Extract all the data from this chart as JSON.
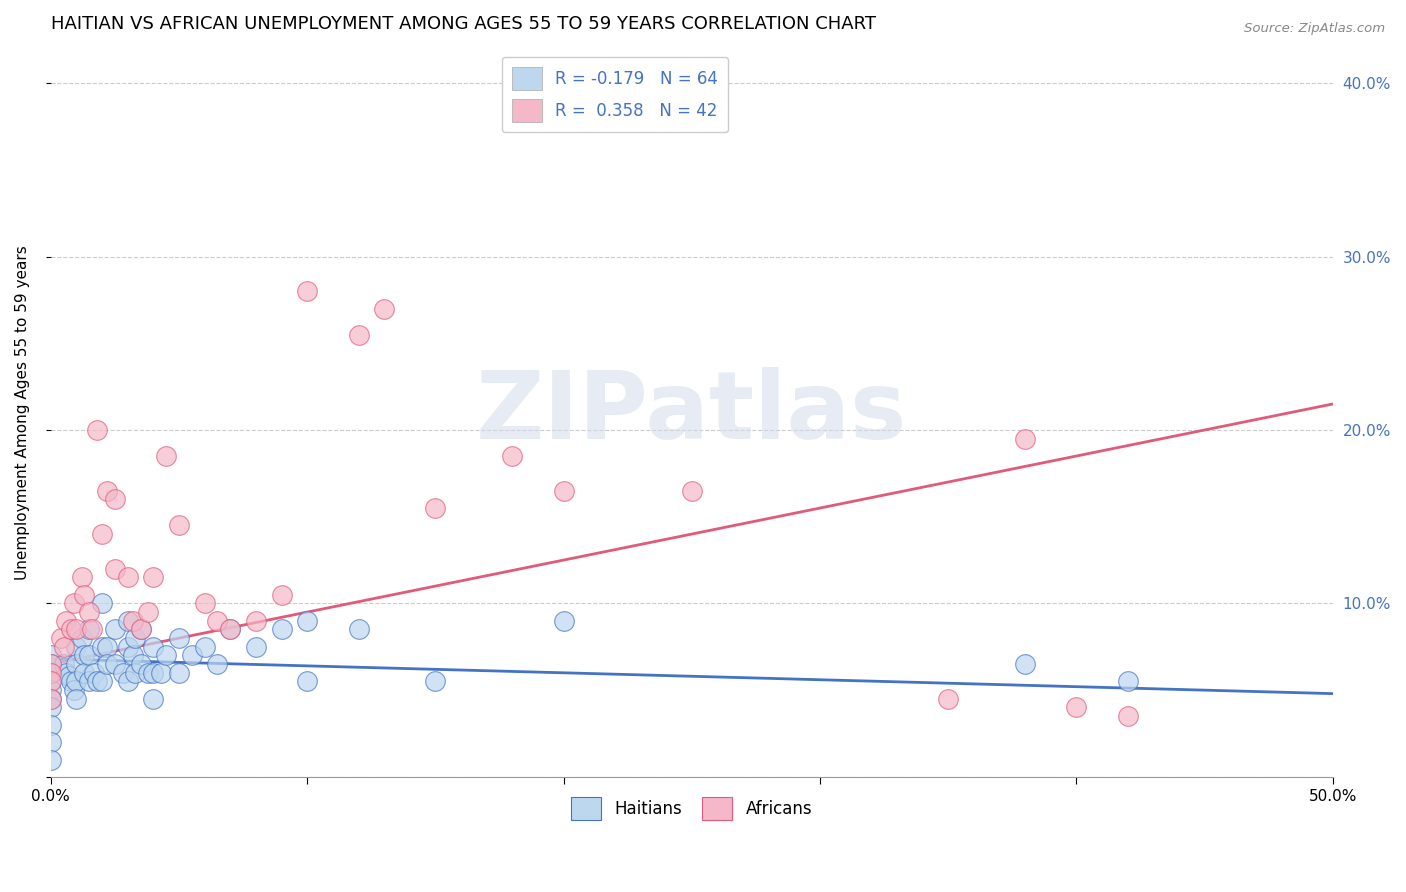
{
  "title": "HAITIAN VS AFRICAN UNEMPLOYMENT AMONG AGES 55 TO 59 YEARS CORRELATION CHART",
  "source": "Source: ZipAtlas.com",
  "ylabel": "Unemployment Among Ages 55 to 59 years",
  "xlim": [
    0.0,
    0.5
  ],
  "ylim": [
    0.0,
    0.42
  ],
  "xticks": [
    0.0,
    0.1,
    0.2,
    0.3,
    0.4,
    0.5
  ],
  "yticks": [
    0.0,
    0.1,
    0.2,
    0.3,
    0.4
  ],
  "xticklabels_edge": [
    "0.0%",
    "50.0%"
  ],
  "yticklabels": [
    "",
    "10.0%",
    "20.0%",
    "30.0%",
    "40.0%"
  ],
  "legend_entries": [
    {
      "label_r": "R = -0.179",
      "label_n": "N = 64",
      "color": "#bdd7ee"
    },
    {
      "label_r": "R =  0.358",
      "label_n": "N = 42",
      "color": "#f4b8c8"
    }
  ],
  "haitian_x": [
    0.0,
    0.0,
    0.0,
    0.0,
    0.0,
    0.0,
    0.0,
    0.0,
    0.0,
    0.0,
    0.005,
    0.006,
    0.007,
    0.008,
    0.009,
    0.01,
    0.01,
    0.01,
    0.01,
    0.012,
    0.013,
    0.013,
    0.015,
    0.015,
    0.015,
    0.017,
    0.018,
    0.02,
    0.02,
    0.02,
    0.022,
    0.022,
    0.025,
    0.025,
    0.028,
    0.03,
    0.03,
    0.03,
    0.032,
    0.033,
    0.033,
    0.035,
    0.035,
    0.038,
    0.04,
    0.04,
    0.04,
    0.043,
    0.045,
    0.05,
    0.05,
    0.055,
    0.06,
    0.065,
    0.07,
    0.08,
    0.09,
    0.1,
    0.1,
    0.12,
    0.15,
    0.2,
    0.38,
    0.42
  ],
  "haitian_y": [
    0.07,
    0.065,
    0.06,
    0.055,
    0.05,
    0.045,
    0.04,
    0.03,
    0.02,
    0.01,
    0.065,
    0.06,
    0.058,
    0.055,
    0.05,
    0.075,
    0.065,
    0.055,
    0.045,
    0.08,
    0.07,
    0.06,
    0.085,
    0.07,
    0.055,
    0.06,
    0.055,
    0.1,
    0.075,
    0.055,
    0.075,
    0.065,
    0.085,
    0.065,
    0.06,
    0.09,
    0.075,
    0.055,
    0.07,
    0.08,
    0.06,
    0.085,
    0.065,
    0.06,
    0.075,
    0.06,
    0.045,
    0.06,
    0.07,
    0.08,
    0.06,
    0.07,
    0.075,
    0.065,
    0.085,
    0.075,
    0.085,
    0.09,
    0.055,
    0.085,
    0.055,
    0.09,
    0.065,
    0.055
  ],
  "african_x": [
    0.0,
    0.0,
    0.0,
    0.0,
    0.004,
    0.005,
    0.006,
    0.008,
    0.009,
    0.01,
    0.012,
    0.013,
    0.015,
    0.016,
    0.018,
    0.02,
    0.022,
    0.025,
    0.025,
    0.03,
    0.032,
    0.035,
    0.038,
    0.04,
    0.045,
    0.05,
    0.06,
    0.065,
    0.07,
    0.08,
    0.09,
    0.1,
    0.12,
    0.13,
    0.15,
    0.18,
    0.2,
    0.25,
    0.35,
    0.38,
    0.4,
    0.42
  ],
  "african_y": [
    0.065,
    0.06,
    0.055,
    0.045,
    0.08,
    0.075,
    0.09,
    0.085,
    0.1,
    0.085,
    0.115,
    0.105,
    0.095,
    0.085,
    0.2,
    0.14,
    0.165,
    0.12,
    0.16,
    0.115,
    0.09,
    0.085,
    0.095,
    0.115,
    0.185,
    0.145,
    0.1,
    0.09,
    0.085,
    0.09,
    0.105,
    0.28,
    0.255,
    0.27,
    0.155,
    0.185,
    0.165,
    0.165,
    0.045,
    0.195,
    0.04,
    0.035
  ],
  "haitian_trend_x": [
    0.0,
    0.5
  ],
  "haitian_trend_y": [
    0.068,
    0.048
  ],
  "african_trend_x": [
    0.0,
    0.5
  ],
  "african_trend_y": [
    0.065,
    0.215
  ],
  "haitian_color": "#bdd7ee",
  "haitian_edge": "#4472c4",
  "african_color": "#f4b8c8",
  "african_edge": "#e05a7a",
  "haitian_trend_color": "#4472c4",
  "african_trend_color": "#e05a7a",
  "watermark_text": "ZIPatlas",
  "background_color": "#ffffff",
  "grid_color": "#cccccc",
  "title_fontsize": 13,
  "axis_label_fontsize": 11,
  "tick_fontsize": 11,
  "right_tick_color": "#4472c4"
}
